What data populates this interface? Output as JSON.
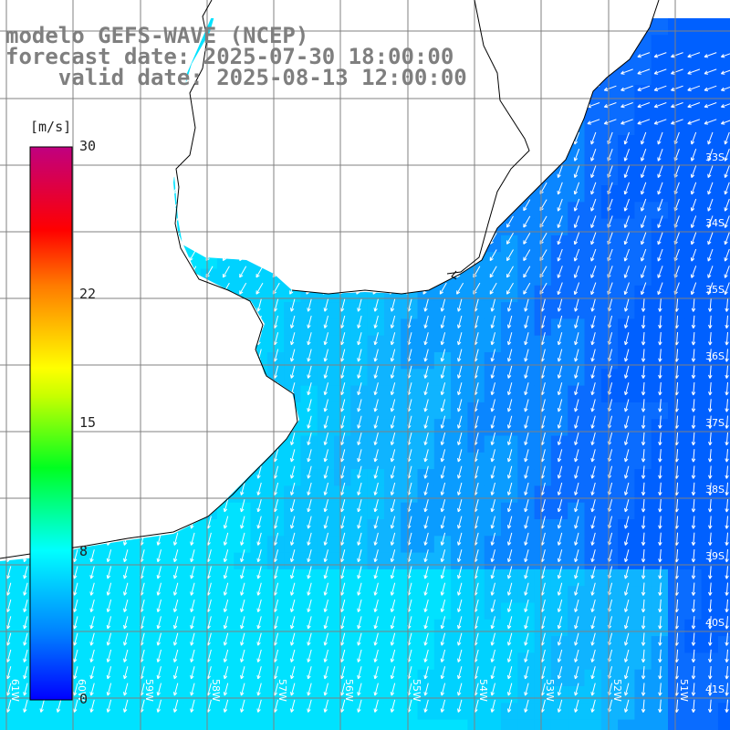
{
  "title": {
    "line1": "modelo GEFS-WAVE (NCEP)",
    "line2": "forecast date: 2025-07-30 18:00:00",
    "line3": "    valid date: 2025-08-13 12:00:00"
  },
  "colorbar": {
    "unit": "[m/s]",
    "ticks": [
      "30",
      "22",
      "15",
      "8",
      "0"
    ],
    "tick_values": [
      30,
      22,
      15,
      8,
      0
    ],
    "range": [
      0,
      30
    ],
    "colors": [
      "#0000ff",
      "#00aaff",
      "#00ffff",
      "#00ff00",
      "#ffff00",
      "#ff8c00",
      "#ff0000",
      "#c8006e"
    ]
  },
  "lat_labels": [
    "33S",
    "34S",
    "35S",
    "36S",
    "37S",
    "38S",
    "39S",
    "40S",
    "41S"
  ],
  "lon_labels": [
    "61W",
    "60W",
    "59W",
    "58W",
    "57W",
    "56W",
    "55W",
    "54W",
    "53W",
    "52W",
    "51W"
  ],
  "colors": {
    "ocean_cyan": "#00e2ff",
    "ocean_mid": "#0fb4ff",
    "ocean_blue": "#0a6cff",
    "land": "#ffffff",
    "coast": "#000000",
    "grid": "#808080",
    "arrow": "#ffffff"
  },
  "field": {
    "variable": "wind speed",
    "direction": "toward SSW",
    "speed_range_ms": [
      2,
      8
    ]
  }
}
